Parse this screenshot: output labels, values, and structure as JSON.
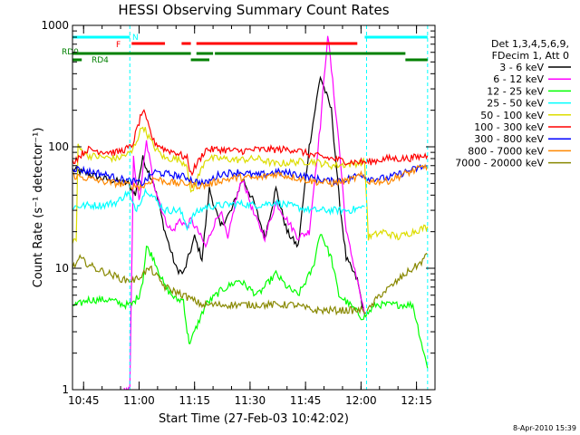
{
  "chart_data": {
    "type": "line",
    "title": "HESSI Observing Summary Count Rates",
    "xlabel": "Start Time (27-Feb-03 10:42:02)",
    "ylabel": "Count Rate (s⁻¹ detector⁻¹)",
    "x_unit": "minutes after 10:42:02",
    "xlim": [
      0,
      98
    ],
    "ylim": [
      1,
      1000
    ],
    "yscale": "log",
    "grid": false,
    "x_ticks": [
      {
        "value": 3,
        "label": "10:45"
      },
      {
        "value": 18,
        "label": "11:00"
      },
      {
        "value": 33,
        "label": "11:15"
      },
      {
        "value": 48,
        "label": "11:30"
      },
      {
        "value": 63,
        "label": "11:45"
      },
      {
        "value": 78,
        "label": "12:00"
      },
      {
        "value": 93,
        "label": "12:15"
      }
    ],
    "y_ticks": [
      {
        "value": 1,
        "label": "1"
      },
      {
        "value": 10,
        "label": "10"
      },
      {
        "value": 100,
        "label": "100"
      },
      {
        "value": 1000,
        "label": "1000"
      }
    ],
    "legend": {
      "position": "right",
      "header": [
        "Det 1,3,4,5,6,9,",
        "FDecim 1, Att 0"
      ]
    },
    "flags": [
      {
        "label": "N",
        "color": "#00ffff",
        "segments": [
          [
            0,
            15.5
          ],
          [
            79,
            96
          ]
        ]
      },
      {
        "label": "F",
        "color": "#ff0000",
        "segments": [
          [
            16,
            25
          ],
          [
            29.5,
            32
          ],
          [
            33.5,
            77
          ]
        ]
      },
      {
        "label": "RD0",
        "color": "#008000",
        "segments": [
          [
            0,
            32
          ],
          [
            33.5,
            38
          ],
          [
            38.5,
            90
          ]
        ]
      },
      {
        "label": "RD4",
        "color": "#008000",
        "segments": [
          [
            0,
            2.5
          ],
          [
            32,
            37
          ],
          [
            90,
            96
          ]
        ]
      }
    ],
    "vlines": [
      {
        "x": 15.5,
        "color": "#00ffff"
      },
      {
        "x": 79.5,
        "color": "#00ffff"
      },
      {
        "x": 96,
        "color": "#00ffff"
      }
    ],
    "series": [
      {
        "name": "3 - 6 keV",
        "color": "#000000",
        "x": [
          0,
          4,
          8,
          12,
          15,
          17,
          19,
          22,
          25,
          28,
          30,
          33,
          35,
          37,
          40,
          43,
          46,
          49,
          52,
          55,
          58,
          61,
          64,
          67,
          70,
          72,
          74,
          77,
          79
        ],
        "y": [
          65,
          60,
          55,
          52,
          50,
          40,
          80,
          50,
          20,
          10,
          9,
          18,
          12,
          45,
          22,
          30,
          55,
          35,
          18,
          45,
          20,
          15,
          100,
          380,
          200,
          40,
          12,
          8,
          4
        ]
      },
      {
        "name": "6 - 12 keV",
        "color": "#ff00ff",
        "x": [
          14,
          15.5,
          16.5,
          18,
          20,
          22,
          25,
          27,
          29,
          31,
          32,
          34,
          36,
          38,
          40,
          42,
          44,
          46,
          49,
          52,
          55,
          58,
          61,
          64,
          67,
          69,
          72,
          74,
          77,
          79
        ],
        "y": [
          1,
          1,
          80,
          35,
          110,
          50,
          25,
          20,
          25,
          22,
          25,
          20,
          15,
          22,
          30,
          17,
          35,
          55,
          28,
          18,
          35,
          25,
          18,
          20,
          150,
          850,
          110,
          20,
          8,
          4
        ]
      },
      {
        "name": "12 - 25 keV",
        "color": "#00ff00",
        "x": [
          0,
          1.5,
          4,
          10,
          14,
          16,
          18,
          19,
          20,
          22,
          25,
          28,
          30,
          31,
          31.5,
          32,
          33,
          36,
          40,
          45,
          50,
          55,
          58,
          61,
          65,
          67,
          70,
          72,
          75,
          78,
          79,
          82,
          85,
          88,
          92,
          95,
          96
        ],
        "y": [
          5,
          5,
          5.5,
          5.5,
          5,
          5,
          6,
          8,
          15,
          12,
          7,
          5.5,
          5.5,
          3,
          2.5,
          2.5,
          3,
          5,
          6.5,
          8,
          6,
          9,
          7,
          6,
          10,
          20,
          12,
          6,
          5,
          4,
          4,
          5,
          5,
          5,
          5,
          2,
          1.5
        ]
      },
      {
        "name": "25 - 50 keV",
        "color": "#00ffff",
        "x": [
          0,
          4,
          8,
          12,
          15,
          17,
          20,
          22,
          25,
          29,
          31,
          33,
          36,
          40,
          45,
          50,
          55,
          60,
          65,
          70,
          75,
          79
        ],
        "y": [
          32,
          33,
          33,
          35,
          42,
          30,
          45,
          38,
          30,
          30,
          22,
          28,
          32,
          33,
          34,
          33,
          35,
          32,
          30,
          30,
          30,
          32
        ]
      },
      {
        "name": "50 - 100 keV",
        "color": "#dddd00",
        "x": [
          0,
          1,
          1.5,
          4,
          8,
          12,
          16,
          19,
          22,
          25,
          28,
          31,
          32,
          36,
          40,
          45,
          50,
          55,
          60,
          65,
          70,
          75,
          79,
          80,
          84,
          88,
          92,
          96
        ],
        "y": [
          17,
          17,
          100,
          85,
          82,
          80,
          90,
          150,
          100,
          80,
          80,
          72,
          40,
          80,
          80,
          78,
          80,
          72,
          75,
          76,
          70,
          72,
          75,
          18,
          20,
          18,
          20,
          22
        ]
      },
      {
        "name": "100 - 300 keV",
        "color": "#ff0000",
        "x": [
          0,
          4,
          8,
          12,
          16,
          19,
          22,
          25,
          28,
          31,
          32,
          36,
          40,
          45,
          50,
          55,
          60,
          65,
          70,
          75,
          80,
          85,
          90,
          93,
          96
        ],
        "y": [
          75,
          95,
          92,
          90,
          100,
          200,
          110,
          95,
          90,
          80,
          60,
          95,
          95,
          92,
          95,
          95,
          95,
          85,
          80,
          75,
          75,
          80,
          80,
          82,
          85
        ]
      },
      {
        "name": "300 - 800 keV",
        "color": "#0000ff",
        "x": [
          0,
          4,
          8,
          12,
          16,
          19,
          22,
          25,
          28,
          31,
          33,
          36,
          40,
          45,
          50,
          55,
          60,
          65,
          70,
          75,
          78,
          80,
          85,
          90,
          96
        ],
        "y": [
          67,
          63,
          60,
          55,
          52,
          50,
          62,
          60,
          58,
          56,
          52,
          50,
          60,
          62,
          58,
          62,
          60,
          55,
          52,
          55,
          60,
          55,
          55,
          62,
          70
        ]
      },
      {
        "name": "800 - 7000 keV",
        "color": "#ff8800",
        "x": [
          0,
          4,
          8,
          12,
          16,
          19,
          22,
          25,
          28,
          31,
          33,
          36,
          40,
          45,
          50,
          55,
          60,
          65,
          70,
          75,
          78,
          80,
          85,
          90,
          96
        ],
        "y": [
          58,
          55,
          52,
          50,
          48,
          47,
          55,
          52,
          50,
          50,
          48,
          48,
          53,
          56,
          55,
          60,
          56,
          52,
          50,
          53,
          58,
          52,
          52,
          60,
          70
        ]
      },
      {
        "name": "7000 - 20000 keV",
        "color": "#888800",
        "x": [
          0,
          2,
          6,
          10,
          14,
          17,
          19,
          21,
          25,
          30,
          35,
          40,
          45,
          50,
          55,
          60,
          65,
          70,
          75,
          80,
          83,
          86,
          90,
          94,
          96
        ],
        "y": [
          10,
          12,
          10,
          9,
          8,
          8,
          9,
          10,
          7,
          6,
          5,
          5,
          5,
          5,
          5,
          5,
          4.5,
          4.5,
          4.5,
          4.5,
          6,
          7,
          9,
          11,
          13
        ]
      }
    ]
  },
  "footer": {
    "timestamp": "8-Apr-2010 15:39"
  }
}
